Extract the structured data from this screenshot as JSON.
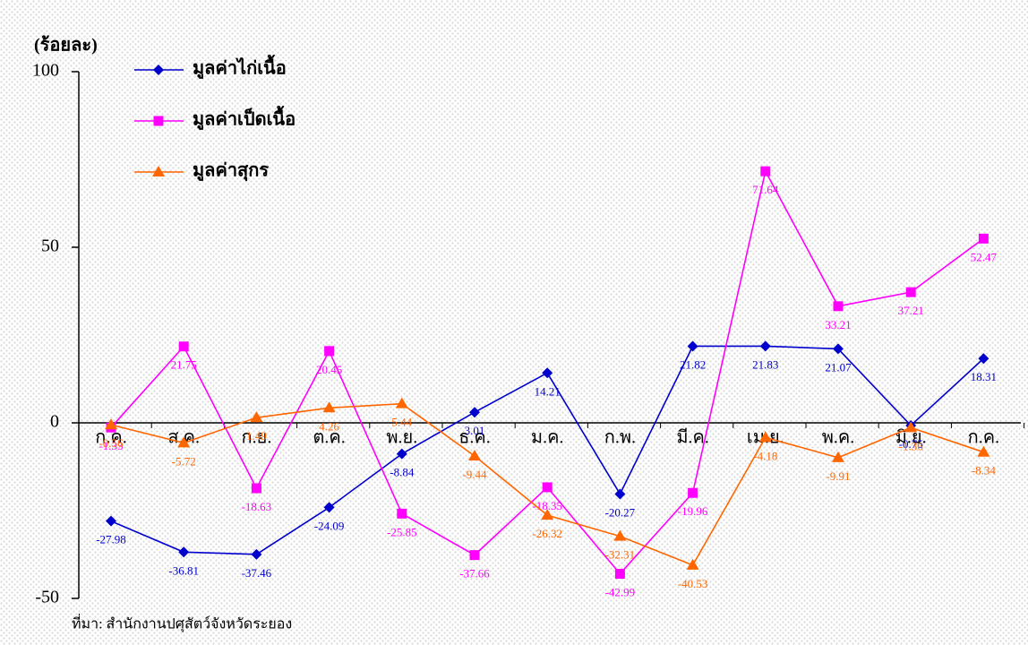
{
  "chart_data": {
    "type": "line",
    "y_axis_label": "(ร้อยละ)",
    "source": "ที่มา: สำนักงานปศุสัตว์จังหวัดระยอง",
    "categories": [
      "ก.ค.",
      "ส.ค.",
      "ก.ย.",
      "ต.ค.",
      "พ.ย.",
      "ธ.ค.",
      "ม.ค.",
      "ก.พ.",
      "มี.ค.",
      "เม.ย.",
      "พ.ค.",
      "มิ.ย.",
      "ก.ค."
    ],
    "series": [
      {
        "name": "มูลค่าไก่เนื้อ",
        "color": "#0000cc",
        "marker": "diamond",
        "values": [
          -27.98,
          -36.81,
          -37.46,
          -24.09,
          -8.84,
          3.01,
          14.21,
          -20.27,
          21.82,
          21.83,
          21.07,
          -0.75,
          18.31
        ]
      },
      {
        "name": "มูลค่าเป็ดเนื้อ",
        "color": "#ff00ff",
        "marker": "square",
        "values": [
          -1.33,
          21.75,
          -18.63,
          20.45,
          -25.85,
          -37.66,
          -18.35,
          -42.99,
          -19.96,
          71.64,
          33.21,
          37.21,
          52.47
        ]
      },
      {
        "name": "มูลค่าสุกร",
        "color": "#ff6600",
        "marker": "triangle",
        "values": [
          -0.56,
          -5.72,
          1.49,
          4.26,
          5.44,
          -9.44,
          -26.32,
          -32.31,
          -40.53,
          -4.18,
          -9.91,
          -1.36,
          -8.34
        ]
      }
    ],
    "ylim": [
      -50,
      100
    ],
    "yticks": [
      -50,
      0,
      50,
      100
    ]
  }
}
